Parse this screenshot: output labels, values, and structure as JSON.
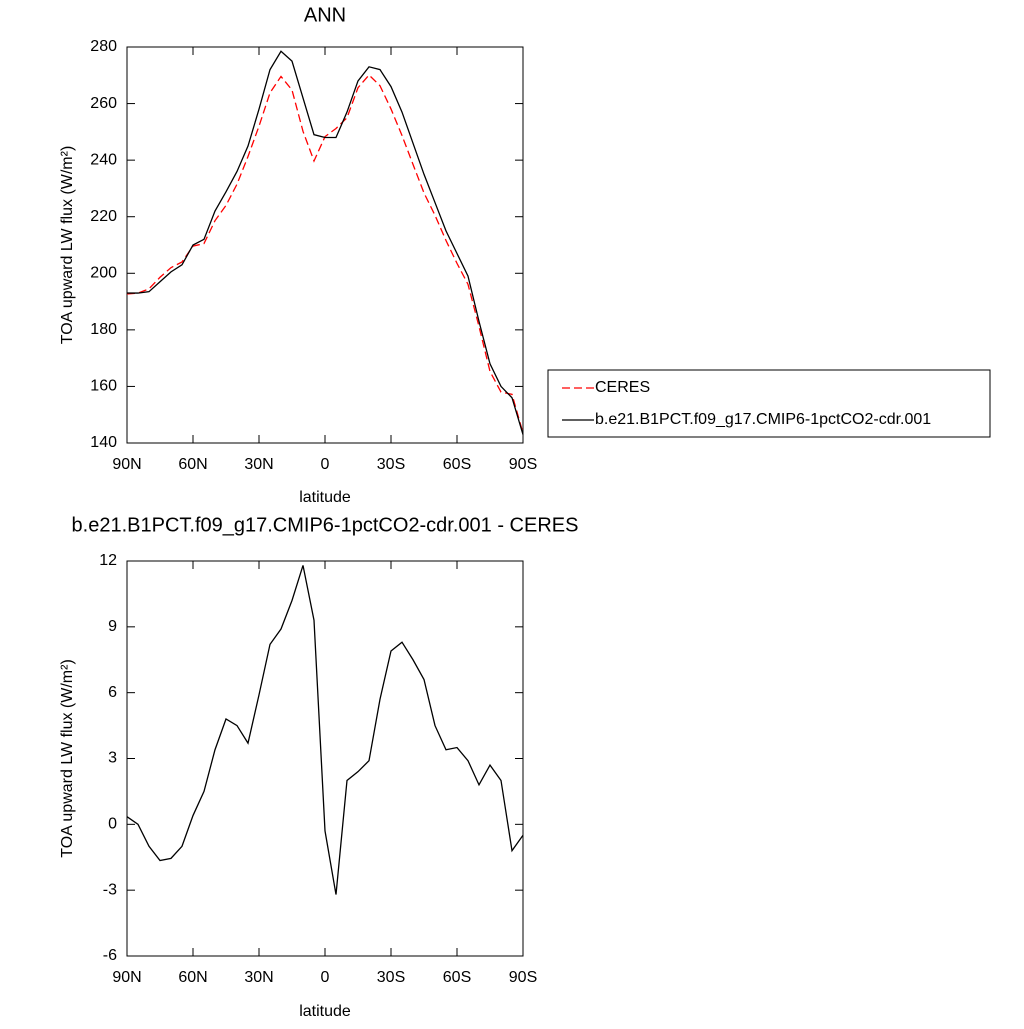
{
  "chart_data": [
    {
      "type": "line",
      "title": "ANN",
      "x_label": "latitude",
      "y_label": "TOA upward LW flux (W/m²)",
      "x": [
        90,
        85,
        80,
        75,
        70,
        65,
        60,
        55,
        50,
        45,
        40,
        35,
        30,
        25,
        20,
        15,
        10,
        5,
        0,
        -5,
        -10,
        -15,
        -20,
        -25,
        -30,
        -35,
        -40,
        -45,
        -50,
        -55,
        -60,
        -65,
        -70,
        -75,
        -80,
        -85,
        -90
      ],
      "series": [
        {
          "name": "CERES",
          "color": "#ff0000",
          "dash": true,
          "values": [
            192.7,
            193,
            194.5,
            198.6,
            202,
            204,
            209.6,
            210.5,
            218.6,
            224,
            231.5,
            241.3,
            252,
            263.8,
            269.6,
            264.8,
            250.2,
            239.7,
            248.3,
            251.2,
            255,
            265.6,
            270.1,
            266.3,
            258.1,
            248.7,
            238.5,
            228.4,
            220.5,
            211.6,
            203.5,
            196.1,
            181.2,
            165.3,
            158,
            157.2,
            143.5
          ]
        },
        {
          "name": "b.e21.B1PCT.f09_g17.CMIP6-1pctCO2-cdr.001",
          "color": "#000000",
          "dash": false,
          "values": [
            193,
            193,
            193.5,
            197,
            200.5,
            203,
            210,
            212,
            222,
            228.8,
            236,
            245,
            258,
            272,
            278.5,
            275,
            262,
            249,
            248,
            248,
            257,
            268,
            273,
            272,
            266,
            257,
            246,
            235,
            225,
            215,
            207,
            199,
            183,
            168,
            160,
            156,
            143
          ]
        }
      ],
      "xlim": [
        90,
        -90
      ],
      "xticks": [
        {
          "value": 90,
          "label": "90N"
        },
        {
          "value": 60,
          "label": "60N"
        },
        {
          "value": 30,
          "label": "30N"
        },
        0,
        {
          "value": -30,
          "label": "30S"
        },
        {
          "value": -60,
          "label": "60S"
        },
        {
          "value": -90,
          "label": "90S"
        }
      ],
      "ylim": [
        140,
        280
      ],
      "yticks": [
        140,
        160,
        180,
        200,
        220,
        240,
        260,
        280
      ]
    },
    {
      "type": "line",
      "title": "b.e21.B1PCT.f09_g17.CMIP6-1pctCO2-cdr.001 - CERES",
      "x_label": "latitude",
      "y_label": "TOA upward LW flux (W/m²)",
      "x": [
        90,
        85,
        80,
        75,
        70,
        65,
        60,
        55,
        50,
        45,
        40,
        35,
        30,
        25,
        20,
        15,
        10,
        5,
        0,
        -5,
        -10,
        -15,
        -20,
        -25,
        -30,
        -35,
        -40,
        -45,
        -50,
        -55,
        -60,
        -65,
        -70,
        -75,
        -80,
        -85,
        -90
      ],
      "color": "#000000",
      "values": [
        0.35,
        0,
        -1,
        -1.65,
        -1.55,
        -1,
        0.4,
        1.5,
        3.4,
        4.8,
        4.5,
        3.7,
        5.9,
        8.2,
        8.9,
        10.2,
        11.8,
        9.3,
        -0.3,
        -3.2,
        2,
        2.4,
        2.9,
        5.7,
        7.9,
        8.3,
        7.5,
        6.6,
        4.5,
        3.4,
        3.5,
        2.9,
        1.8,
        2.7,
        2,
        -1.2,
        -0.5
      ],
      "xlim": [
        90,
        -90
      ],
      "xticks": [
        {
          "value": 90,
          "label": "90N"
        },
        {
          "value": 60,
          "label": "60N"
        },
        {
          "value": 30,
          "label": "30N"
        },
        0,
        {
          "value": -30,
          "label": "30S"
        },
        {
          "value": -60,
          "label": "60S"
        },
        {
          "value": -90,
          "label": "90S"
        }
      ],
      "ylim": [
        -6,
        12
      ],
      "yticks": [
        -6,
        -3,
        0,
        3,
        6,
        9,
        12
      ]
    }
  ]
}
